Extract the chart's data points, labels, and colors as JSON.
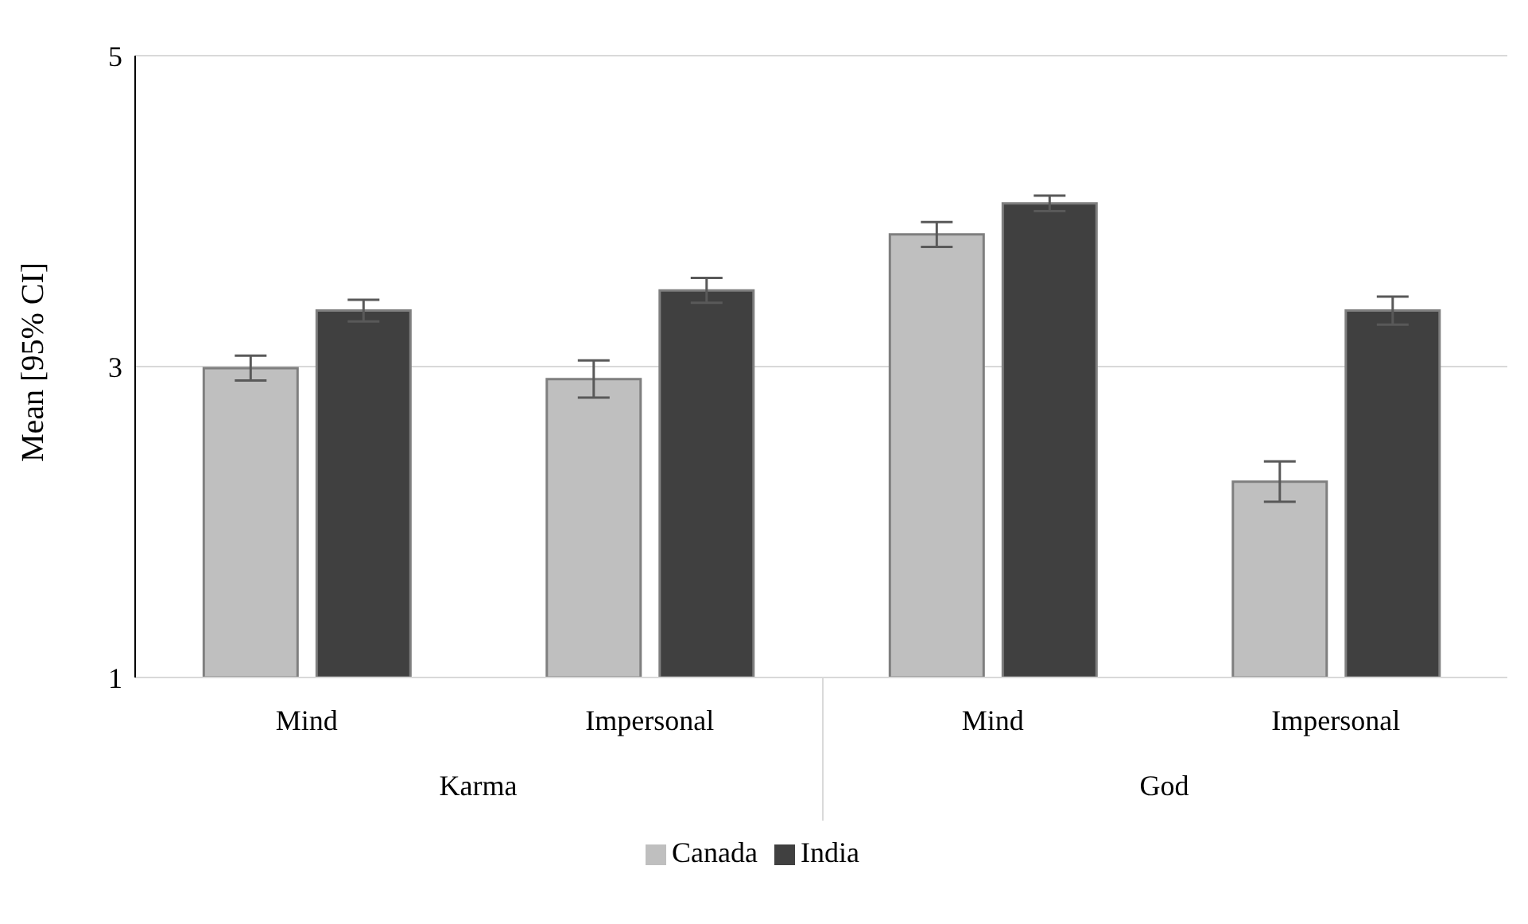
{
  "chart_data": {
    "type": "bar",
    "ylabel": "Mean [95% CI]",
    "categories": [
      "Mind",
      "Impersonal",
      "Mind",
      "Impersonal"
    ],
    "annotations": [
      "Karma",
      "God"
    ],
    "series": [
      {
        "name": "Canada",
        "color": "#bfbfbf",
        "values": [
          2.99,
          2.92,
          3.85,
          2.26
        ],
        "errors": [
          0.08,
          0.12,
          0.08,
          0.13
        ]
      },
      {
        "name": "India",
        "color": "#404040",
        "values": [
          3.36,
          3.49,
          4.05,
          3.36
        ],
        "errors": [
          0.07,
          0.08,
          0.05,
          0.09
        ]
      }
    ],
    "ylim": [
      1,
      5
    ],
    "yticks": [
      1,
      3,
      5
    ],
    "grid": "y",
    "legend": "bottom"
  }
}
